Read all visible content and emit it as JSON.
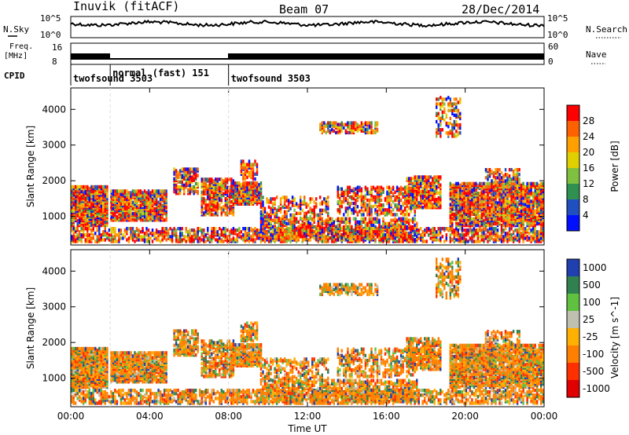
{
  "chart_data": [
    {
      "type": "line",
      "header": {
        "station": "Inuvik (fitACF)",
        "beam": "Beam 07",
        "date": "28/Dec/2014"
      },
      "left_label": "N.Sky",
      "right_label": "N.Search",
      "y_ticks": [
        "10^5",
        "10^0"
      ],
      "right_ticks": [
        "10^5",
        "10^0"
      ]
    },
    {
      "type": "line",
      "left_label": [
        "Freq.",
        "[MHz]"
      ],
      "y_ticks": [
        "16",
        "8"
      ],
      "right_ticks": [
        "60",
        "0"
      ],
      "right_label": "Nave",
      "cpid_label": "CPID",
      "cpid_segments": [
        {
          "start_hour": 0,
          "label": "twofsound 3503"
        },
        {
          "start_hour": 2,
          "label": "normal (fast) 151"
        },
        {
          "start_hour": 8,
          "label": "twofsound 3503"
        }
      ]
    },
    {
      "type": "heatmap",
      "ylabel": "Slant Range [km]",
      "y_ticks": [
        1000,
        2000,
        3000,
        4000
      ],
      "ylim": [
        200,
        4600
      ],
      "colorbar_label": "Power [dB]",
      "colorbar_ticks": [
        "28",
        "24",
        "20",
        "16",
        "12",
        "8",
        "4"
      ],
      "colors": [
        "#ff0000",
        "#ff6000",
        "#ffa000",
        "#e0d000",
        "#80c040",
        "#309050",
        "#2050c0",
        "#0010ff"
      ]
    },
    {
      "type": "heatmap",
      "ylabel": "Slant Range [km]",
      "y_ticks": [
        1000,
        2000,
        3000,
        4000
      ],
      "ylim": [
        200,
        4600
      ],
      "xlabel": "Time UT",
      "x_ticks": [
        "00:00",
        "04:00",
        "08:00",
        "12:00",
        "16:00",
        "20:00",
        "00:00"
      ],
      "colorbar_label": "Velocity [m s^-1]",
      "colorbar_ticks": [
        "1000",
        "500",
        "100",
        "25",
        "-25",
        "-100",
        "-500",
        "-1000"
      ],
      "colors": [
        "#2040b0",
        "#308050",
        "#60c040",
        "#c0c0b0",
        "#ffb000",
        "#ff8000",
        "#ff3000",
        "#e00000"
      ]
    }
  ]
}
